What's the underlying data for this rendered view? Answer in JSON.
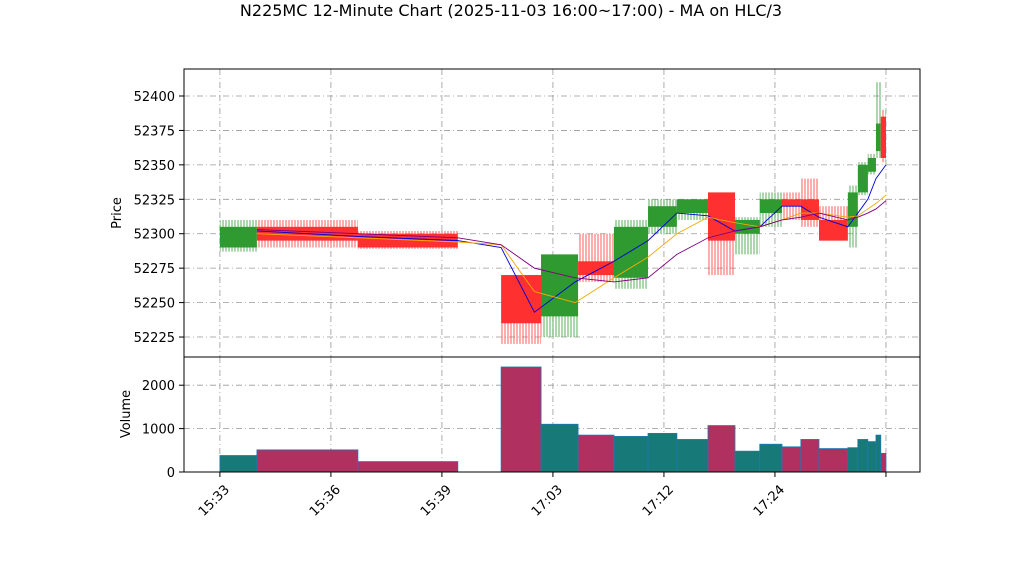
{
  "chart_data": {
    "type": "candlestick",
    "title": "N225MC 12-Minute Chart (2025-11-03 16:00~17:00) - MA on HLC/3",
    "ylabel": "Price",
    "volume_label": "Volume",
    "up_color": "#2f9a2f",
    "down_color": "#ff3030",
    "volume_up_color": "#177a78",
    "volume_down_color": "#b03060",
    "x_start": [
      0,
      1,
      3.73,
      7.6,
      8.68,
      9.68,
      10.65,
      11.57,
      12.35,
      13.19,
      13.92,
      14.59,
      15.19,
      15.7,
      16.19,
      16.97,
      17.24,
      17.51,
      17.73,
      17.86
    ],
    "x_end": [
      1,
      3.73,
      6.43,
      8.68,
      9.68,
      10.65,
      11.57,
      12.35,
      13.19,
      13.92,
      14.59,
      15.19,
      15.7,
      16.19,
      16.97,
      17.24,
      17.51,
      17.73,
      17.86,
      18
    ],
    "open": [
      52290,
      52305,
      52300,
      52270,
      52240,
      52280,
      52268,
      52305,
      52315,
      52330,
      52300,
      52315,
      52325,
      52325,
      52310,
      52305,
      52330,
      52345,
      52360,
      52385
    ],
    "high": [
      52310,
      52310,
      52302,
      52270,
      52285,
      52300,
      52310,
      52325,
      52325,
      52330,
      52312,
      52330,
      52330,
      52340,
      52320,
      52335,
      52352,
      52358,
      52410,
      52390
    ],
    "low": [
      52287,
      52290,
      52289,
      52220,
      52225,
      52265,
      52260,
      52300,
      52310,
      52270,
      52285,
      52305,
      52310,
      52305,
      52295,
      52290,
      52328,
      52343,
      52355,
      52352
    ],
    "close": [
      52305,
      52295,
      52290,
      52235,
      52285,
      52270,
      52305,
      52320,
      52325,
      52295,
      52310,
      52325,
      52320,
      52310,
      52295,
      52330,
      52350,
      52355,
      52380,
      52355
    ],
    "volume": [
      380,
      510,
      240,
      2420,
      1100,
      850,
      820,
      890,
      750,
      1070,
      480,
      640,
      580,
      750,
      540,
      560,
      750,
      700,
      850,
      430
    ],
    "ma_x": [
      1,
      3.73,
      6.43,
      7.6,
      8.5,
      9.6,
      10.65,
      11.57,
      12.35,
      13.19,
      13.92,
      14.59,
      15.19,
      15.7,
      16.19,
      16.97,
      17.24,
      17.51,
      17.73,
      18
    ],
    "series": [
      {
        "color": "#0000dd",
        "values": [
          52302,
          52298,
          52295,
          52290,
          52243,
          52265,
          52280,
          52295,
          52315,
          52313,
          52302,
          52305,
          52320,
          52320,
          52312,
          52305,
          52315,
          52325,
          52340,
          52350
        ]
      },
      {
        "color": "#f5a800",
        "values": [
          52300,
          52297,
          52294,
          52292,
          52258,
          52250,
          52268,
          52283,
          52300,
          52312,
          52308,
          52305,
          52310,
          52315,
          52315,
          52312,
          52313,
          52318,
          52322,
          52328
        ]
      },
      {
        "color": "#800080",
        "values": [
          52303,
          52300,
          52297,
          52292,
          52275,
          52268,
          52265,
          52268,
          52285,
          52297,
          52302,
          52305,
          52310,
          52312,
          52315,
          52310,
          52312,
          52315,
          52318,
          52324
        ]
      }
    ],
    "xlim": [
      -0.97,
      18.92
    ],
    "xticks": [
      {
        "value": 0,
        "label": "15:33"
      },
      {
        "value": 3,
        "label": "15:36"
      },
      {
        "value": 6,
        "label": "15:39"
      },
      {
        "value": 9,
        "label": "17:03"
      },
      {
        "value": 12,
        "label": "17:12"
      },
      {
        "value": 15,
        "label": "17:24"
      },
      18
    ],
    "ylim": [
      52210.5,
      52419.6
    ],
    "yticks": [
      52225,
      52250,
      52275,
      52300,
      52325,
      52350,
      52375,
      52400
    ],
    "volume_ylim": [
      0,
      2650
    ],
    "volume_yticks": [
      0,
      1000,
      2000
    ],
    "grid": true
  }
}
